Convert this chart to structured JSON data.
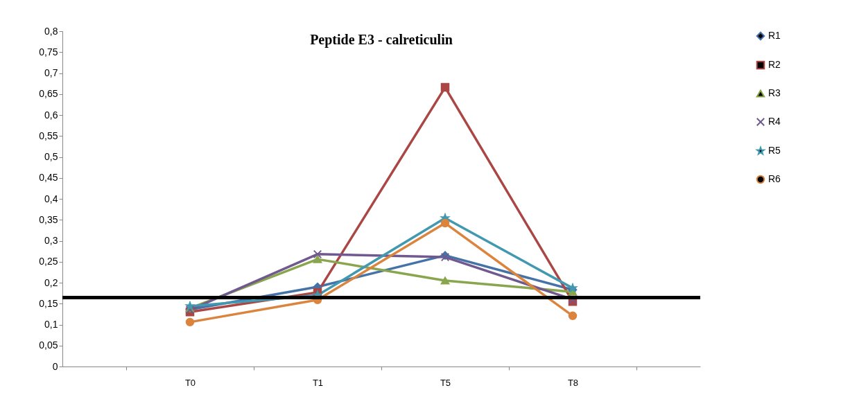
{
  "chart_data": {
    "type": "line",
    "title": "Peptide E3 - calreticulin",
    "categories": [
      "T0",
      "T1",
      "T5",
      "T8"
    ],
    "series": [
      {
        "name": "R1",
        "color": "#4572a7",
        "marker": "diamond",
        "values": [
          0.136,
          0.19,
          0.265,
          0.183
        ]
      },
      {
        "name": "R2",
        "color": "#aa4643",
        "marker": "square",
        "values": [
          0.13,
          0.177,
          0.666,
          0.155
        ]
      },
      {
        "name": "R3",
        "color": "#89a54e",
        "marker": "triangle",
        "values": [
          0.139,
          0.256,
          0.205,
          0.178
        ]
      },
      {
        "name": "R4",
        "color": "#71588f",
        "marker": "cross",
        "values": [
          0.135,
          0.268,
          0.261,
          0.16
        ]
      },
      {
        "name": "R5",
        "color": "#4198af",
        "marker": "star",
        "values": [
          0.144,
          0.17,
          0.354,
          0.187
        ]
      },
      {
        "name": "R6",
        "color": "#db843d",
        "marker": "circle",
        "values": [
          0.106,
          0.159,
          0.342,
          0.121
        ]
      }
    ],
    "ylim": [
      0,
      0.8
    ],
    "yticks": [
      0,
      {
        "value": 0.05,
        "label": "0,05"
      },
      {
        "value": 0.1,
        "label": "0,1"
      },
      {
        "value": 0.15,
        "label": "0,15"
      },
      {
        "value": 0.2,
        "label": "0,2"
      },
      {
        "value": 0.25,
        "label": "0,25"
      },
      {
        "value": 0.3,
        "label": "0,3"
      },
      {
        "value": 0.35,
        "label": "0,35"
      },
      {
        "value": 0.4,
        "label": "0,4"
      },
      {
        "value": 0.45,
        "label": "0,45"
      },
      {
        "value": 0.5,
        "label": "0,5"
      },
      {
        "value": 0.55,
        "label": "0,55"
      },
      {
        "value": 0.6,
        "label": "0,6"
      },
      {
        "value": 0.65,
        "label": "0,65"
      },
      {
        "value": 0.7,
        "label": "0,7"
      },
      {
        "value": 0.75,
        "label": "0,75"
      },
      {
        "value": 0.8,
        "label": "0,8"
      }
    ],
    "ref_lines": [
      {
        "axis": "y",
        "value": 0.164,
        "color": "#000000"
      }
    ],
    "grid": false,
    "legend": "right",
    "line_style": "solid"
  }
}
